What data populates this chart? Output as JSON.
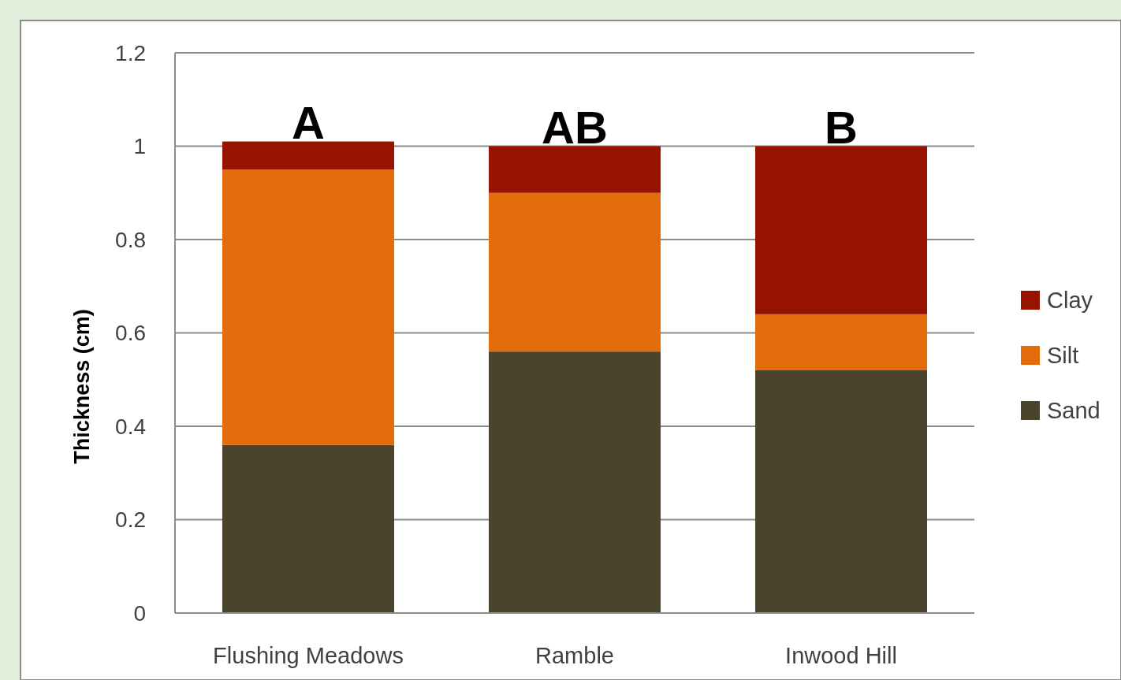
{
  "chart_data": {
    "type": "bar",
    "stacked": true,
    "ylabel": "Thickness  (cm)",
    "categories": [
      "Flushing Meadows",
      "Ramble",
      "Inwood Hill"
    ],
    "series": [
      {
        "name": "Sand",
        "color": "#4a432d",
        "values": [
          0.36,
          0.56,
          0.52
        ]
      },
      {
        "name": "Silt",
        "color": "#e36c0a",
        "values": [
          0.59,
          0.34,
          0.12
        ]
      },
      {
        "name": "Clay",
        "color": "#981200",
        "values": [
          0.06,
          0.1,
          0.36
        ]
      }
    ],
    "ylim": [
      0,
      1.2
    ],
    "yticks": [
      0,
      0.2,
      0.4,
      0.6,
      0.8,
      1,
      1.2
    ],
    "grid": "y",
    "legend": "right",
    "annotations": [
      {
        "text": "A",
        "x": "Flushing Meadows",
        "y": 1.01
      },
      {
        "text": "AB",
        "x": "Ramble",
        "y": 1
      },
      {
        "text": "B",
        "x": "Inwood Hill",
        "y": 1
      }
    ]
  }
}
